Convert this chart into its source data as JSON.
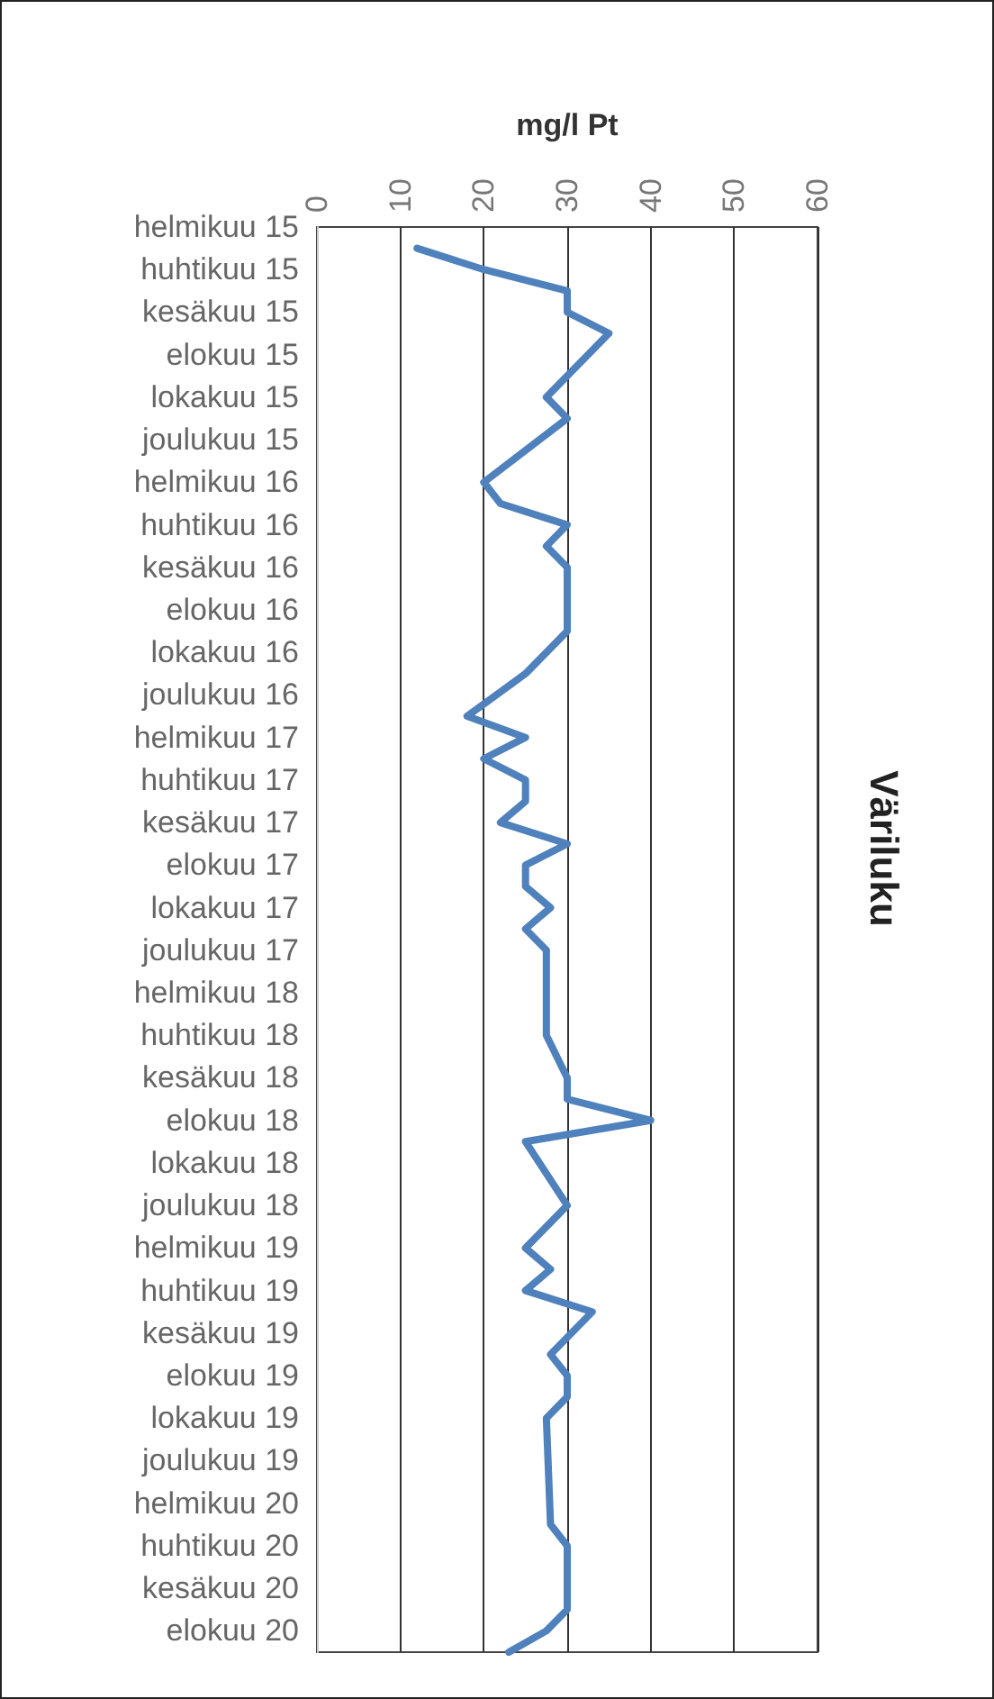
{
  "chart_data": {
    "type": "line",
    "orientation": "horizontal",
    "title": "Väriluku",
    "xlabel": "mg/l Pt",
    "categories": [
      "helmikuu 15",
      null,
      "huhtikuu 15",
      null,
      "kesäkuu 15",
      null,
      "elokuu 15",
      null,
      "lokakuu 15",
      null,
      "joulukuu 15",
      null,
      "helmikuu 16",
      null,
      "huhtikuu 16",
      null,
      "kesäkuu 16",
      null,
      "elokuu 16",
      null,
      "lokakuu 16",
      null,
      "joulukuu 16",
      null,
      "helmikuu 17",
      null,
      "huhtikuu 17",
      null,
      "kesäkuu 17",
      null,
      "elokuu 17",
      null,
      "lokakuu 17",
      null,
      "joulukuu 17",
      null,
      "helmikuu 18",
      null,
      "huhtikuu 18",
      null,
      "kesäkuu 18",
      null,
      "elokuu 18",
      null,
      "lokakuu 18",
      null,
      "joulukuu 18",
      null,
      "helmikuu 19",
      null,
      "huhtikuu 19",
      null,
      "kesäkuu 19",
      null,
      "elokuu 19",
      null,
      "lokakuu 19",
      null,
      "joulukuu 19",
      null,
      "helmikuu 20",
      null,
      "huhtikuu 20",
      null,
      "kesäkuu 20",
      null,
      "elokuu 20",
      null
    ],
    "series": [
      {
        "color": "#4f81bd",
        "values": [
          null,
          12,
          20,
          30,
          30,
          35,
          null,
          null,
          27.5,
          30,
          null,
          null,
          20,
          22,
          30,
          27.5,
          30,
          null,
          null,
          30,
          null,
          25,
          null,
          18,
          25,
          20,
          25,
          25,
          22,
          30,
          25,
          25,
          28,
          25,
          27.5,
          null,
          null,
          null,
          27.5,
          null,
          30,
          30,
          40,
          25,
          null,
          null,
          30,
          null,
          25,
          28,
          25,
          33,
          null,
          28,
          30,
          30,
          27.5,
          null,
          null,
          null,
          null,
          28,
          30,
          null,
          null,
          30,
          27.5,
          23
        ]
      }
    ],
    "xlim": [
      0,
      60
    ],
    "xticks": [
      0,
      10,
      20,
      30,
      40,
      50,
      60
    ],
    "grid": "x",
    "marker": "none",
    "line_style": "solid"
  }
}
